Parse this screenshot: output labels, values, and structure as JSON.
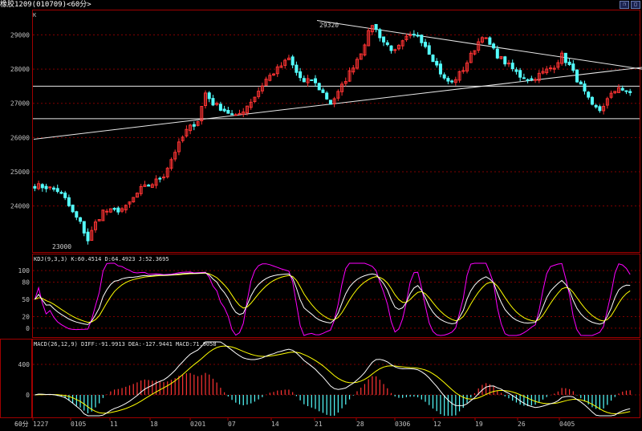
{
  "window": {
    "title": "橡胶1209(010709)<60分>",
    "buttons": [
      "restore-window-icon",
      "maximize-window-icon"
    ]
  },
  "colors": {
    "up": "#ff3333",
    "down": "#54ffff",
    "grid": "#800000",
    "frame": "#a00000",
    "axis_text": "#c0c0c0",
    "kdj_k": "#ffffff",
    "kdj_d": "#ffff00",
    "kdj_j": "#ff00ff",
    "macd_diff": "#ffffff",
    "macd_dea": "#ffff00"
  },
  "main_panel": {
    "unit_label": "K",
    "y_ticks": [
      "29000",
      "28000",
      "27000",
      "26000",
      "25000",
      "24000"
    ],
    "annotations": {
      "high": "29320",
      "low": "23000"
    }
  },
  "kdj_panel": {
    "header": "KDJ(9,3,3) K:60.4514 D:64.4923 J:52.3695",
    "y_ticks": [
      "100",
      "80",
      "50",
      "20",
      "0"
    ]
  },
  "macd_panel": {
    "header": "MACD(26,12,9) DIFF:-91.9913 DEA:-127.9441 MACD:71.9058",
    "y_ticks": [
      "400",
      "0"
    ]
  },
  "x_axis": {
    "period_label": "60分",
    "ticks": [
      "1227",
      "0105",
      "11",
      "18",
      "0201",
      "07",
      "14",
      "21",
      "28",
      "0306",
      "12",
      "19",
      "26",
      "0405"
    ]
  },
  "chart_data": {
    "type": "candlestick",
    "title": "橡胶1209(010709)<60分>",
    "price_range": [
      22700,
      29550
    ],
    "price_path": [
      [
        0,
        24600
      ],
      [
        3,
        24550
      ],
      [
        6,
        24450
      ],
      [
        8,
        24200
      ],
      [
        10,
        23800
      ],
      [
        12,
        23500
      ],
      [
        14,
        23000
      ],
      [
        16,
        23500
      ],
      [
        18,
        23850
      ],
      [
        21,
        23850
      ],
      [
        24,
        23950
      ],
      [
        28,
        24500
      ],
      [
        31,
        24650
      ],
      [
        34,
        24900
      ],
      [
        37,
        25600
      ],
      [
        40,
        26200
      ],
      [
        43,
        26500
      ],
      [
        45,
        27300
      ],
      [
        47,
        27000
      ],
      [
        50,
        26800
      ],
      [
        53,
        26600
      ],
      [
        55,
        26800
      ],
      [
        58,
        27200
      ],
      [
        61,
        27700
      ],
      [
        64,
        28000
      ],
      [
        67,
        28300
      ],
      [
        69,
        27900
      ],
      [
        71,
        27600
      ],
      [
        73,
        27700
      ],
      [
        76,
        27300
      ],
      [
        78,
        27000
      ],
      [
        80,
        27300
      ],
      [
        83,
        27900
      ],
      [
        86,
        28500
      ],
      [
        89,
        29320
      ],
      [
        92,
        28800
      ],
      [
        95,
        28500
      ],
      [
        98,
        28900
      ],
      [
        101,
        29000
      ],
      [
        103,
        28700
      ],
      [
        106,
        28100
      ],
      [
        108,
        27700
      ],
      [
        110,
        27600
      ],
      [
        113,
        28000
      ],
      [
        116,
        28600
      ],
      [
        118,
        29000
      ],
      [
        120,
        28700
      ],
      [
        122,
        28400
      ],
      [
        125,
        28100
      ],
      [
        128,
        27800
      ],
      [
        131,
        27700
      ],
      [
        134,
        27900
      ],
      [
        137,
        28100
      ],
      [
        139,
        28400
      ],
      [
        141,
        28100
      ],
      [
        143,
        27700
      ],
      [
        145,
        27300
      ],
      [
        147,
        26900
      ],
      [
        149,
        26800
      ],
      [
        151,
        27100
      ],
      [
        154,
        27500
      ],
      [
        156,
        27300
      ],
      [
        158,
        27300
      ]
    ],
    "lines": {
      "descending_resistance": [
        [
          395,
          29420
        ],
        [
          800,
          28000
        ]
      ],
      "ascending_support": [
        [
          42,
          25950
        ],
        [
          800,
          28050
        ]
      ],
      "horizontal_upper": 27500,
      "horizontal_lower": 26550
    },
    "kdj": {
      "K": 60.4514,
      "D": 64.4923,
      "J": 52.3695
    },
    "macd": {
      "DIFF": -91.9913,
      "DEA": -127.9441,
      "MACD": 71.9058
    }
  }
}
